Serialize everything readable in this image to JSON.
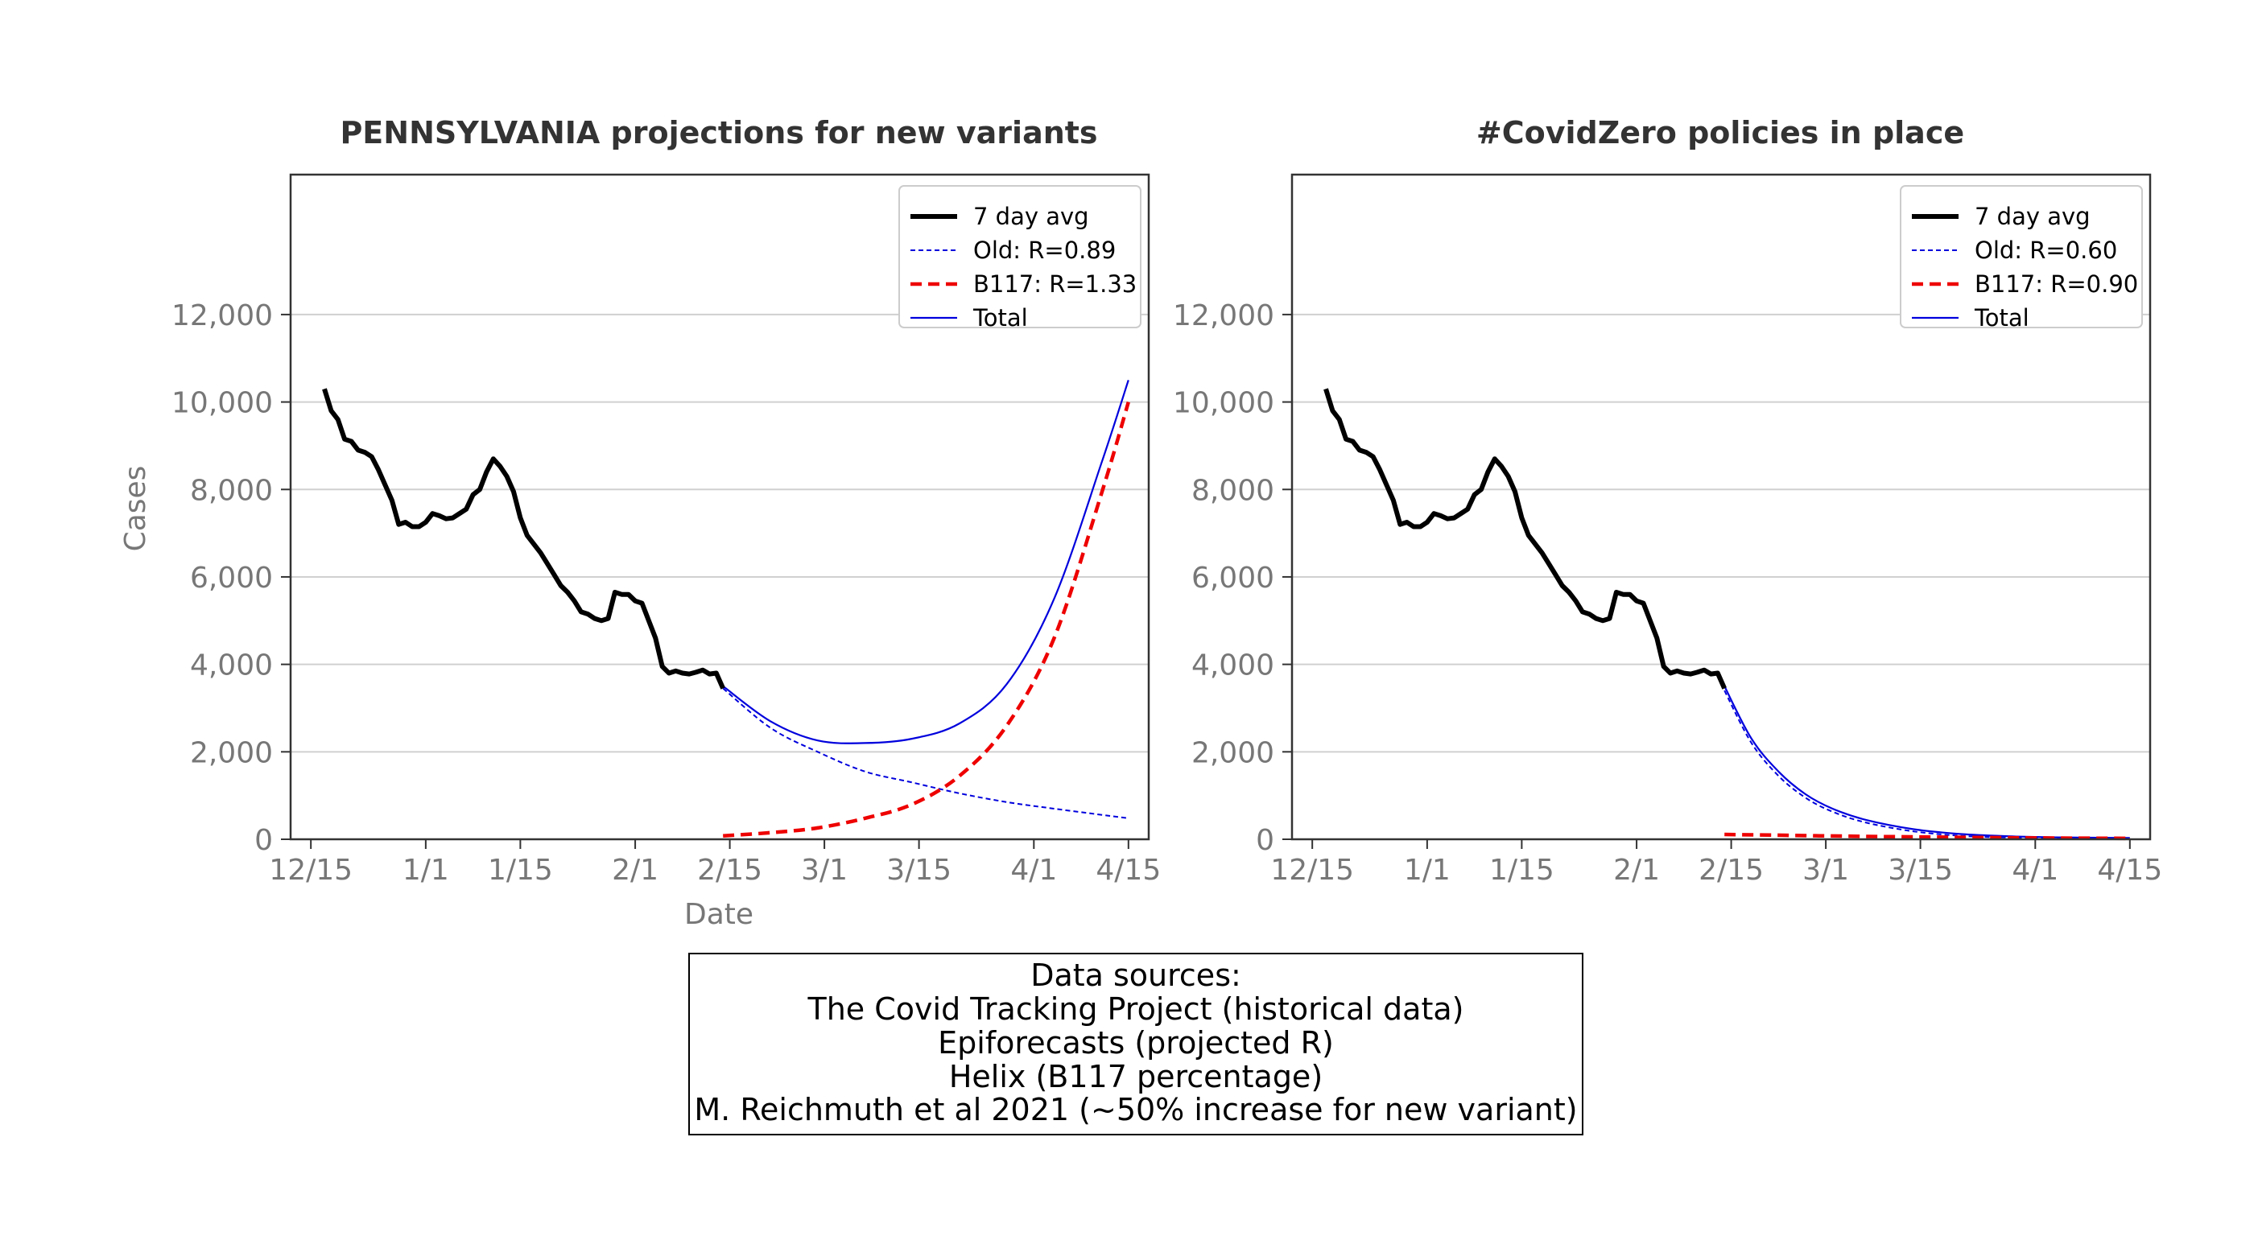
{
  "chart_data": [
    {
      "type": "line",
      "title": "PENNSYLVANIA projections for new variants",
      "xlabel": "Date",
      "ylabel": "Cases",
      "x_ticks": [
        "12/15",
        "1/1",
        "1/15",
        "2/1",
        "2/15",
        "3/1",
        "3/15",
        "4/1",
        "4/15"
      ],
      "y_ticks": [
        "0",
        "2,000",
        "4,000",
        "6,000",
        "8,000",
        "10,000",
        "12,000"
      ],
      "ylim": [
        0,
        12000
      ],
      "grid": "horizontal",
      "legend_position": "top-right",
      "colors": {
        "history": "#000000",
        "old": "#0000dd",
        "b117": "#ee0000",
        "total": "#0000dd"
      },
      "legend": [
        {
          "label": "7 day avg",
          "style": "thick-solid-black"
        },
        {
          "label": "Old: R=0.89",
          "style": "dashed-blue"
        },
        {
          "label": "B117: R=1.33",
          "style": "dashed-red"
        },
        {
          "label": "Total",
          "style": "solid-blue"
        }
      ],
      "series": [
        {
          "name": "7 day avg",
          "x": [
            "12/17",
            "12/18",
            "12/19",
            "12/20",
            "12/21",
            "12/22",
            "12/23",
            "12/24",
            "12/25",
            "12/26",
            "12/27",
            "12/28",
            "12/29",
            "12/30",
            "12/31",
            "1/1",
            "1/2",
            "1/3",
            "1/4",
            "1/5",
            "1/6",
            "1/7",
            "1/8",
            "1/9",
            "1/10",
            "1/11",
            "1/12",
            "1/13",
            "1/14",
            "1/15",
            "1/16",
            "1/17",
            "1/18",
            "1/19",
            "1/20",
            "1/21",
            "1/22",
            "1/23",
            "1/24",
            "1/25",
            "1/26",
            "1/27",
            "1/28",
            "1/29",
            "1/30",
            "1/31",
            "2/1",
            "2/2",
            "2/3",
            "2/4",
            "2/5",
            "2/6",
            "2/7",
            "2/8",
            "2/9",
            "2/10",
            "2/11",
            "2/12",
            "2/13",
            "2/14"
          ],
          "values": [
            10300,
            9800,
            9600,
            9150,
            9100,
            8900,
            8850,
            8750,
            8450,
            8100,
            7750,
            7200,
            7250,
            7150,
            7150,
            7250,
            7450,
            7400,
            7330,
            7350,
            7450,
            7550,
            7880,
            8000,
            8400,
            8700,
            8530,
            8300,
            7950,
            7350,
            6950,
            6750,
            6550,
            6300,
            6050,
            5800,
            5650,
            5450,
            5200,
            5150,
            5050,
            5000,
            5050,
            5650,
            5600,
            5600,
            5450,
            5400,
            5000,
            4600,
            3950,
            3800,
            3850,
            3800,
            3780,
            3820,
            3870,
            3780,
            3800,
            3450
          ]
        },
        {
          "name": "Old: R=0.89",
          "x": [
            "2/14",
            "2/21",
            "2/28",
            "3/7",
            "3/14",
            "3/21",
            "3/28",
            "4/4",
            "4/11",
            "4/15"
          ],
          "values": [
            3450,
            2550,
            2000,
            1550,
            1300,
            1050,
            850,
            700,
            560,
            480
          ]
        },
        {
          "name": "B117: R=1.33",
          "x": [
            "2/14",
            "2/21",
            "2/28",
            "3/7",
            "3/14",
            "3/21",
            "3/28",
            "4/4",
            "4/11",
            "4/15"
          ],
          "values": [
            80,
            150,
            260,
            480,
            800,
            1450,
            2600,
            4600,
            7900,
            10000
          ]
        },
        {
          "name": "Total",
          "x": [
            "2/14",
            "2/21",
            "2/28",
            "3/7",
            "3/14",
            "3/21",
            "3/28",
            "4/4",
            "4/11",
            "4/15"
          ],
          "values": [
            3500,
            2700,
            2260,
            2200,
            2300,
            2650,
            3550,
            5500,
            8600,
            10500
          ]
        }
      ]
    },
    {
      "type": "line",
      "title": "#CovidZero policies in place",
      "xlabel": "",
      "ylabel": "",
      "x_ticks": [
        "12/15",
        "1/1",
        "1/15",
        "2/1",
        "2/15",
        "3/1",
        "3/15",
        "4/1",
        "4/15"
      ],
      "y_ticks": [
        "0",
        "2,000",
        "4,000",
        "6,000",
        "8,000",
        "10,000",
        "12,000"
      ],
      "ylim": [
        0,
        12000
      ],
      "grid": "horizontal",
      "legend_position": "top-right",
      "colors": {
        "history": "#000000",
        "old": "#0000dd",
        "b117": "#ee0000",
        "total": "#0000dd"
      },
      "legend": [
        {
          "label": "7 day avg",
          "style": "thick-solid-black"
        },
        {
          "label": "Old: R=0.60",
          "style": "dashed-blue"
        },
        {
          "label": "B117: R=0.90",
          "style": "dashed-red"
        },
        {
          "label": "Total",
          "style": "solid-blue"
        }
      ],
      "series": [
        {
          "name": "7 day avg",
          "x": [
            "12/17",
            "12/18",
            "12/19",
            "12/20",
            "12/21",
            "12/22",
            "12/23",
            "12/24",
            "12/25",
            "12/26",
            "12/27",
            "12/28",
            "12/29",
            "12/30",
            "12/31",
            "1/1",
            "1/2",
            "1/3",
            "1/4",
            "1/5",
            "1/6",
            "1/7",
            "1/8",
            "1/9",
            "1/10",
            "1/11",
            "1/12",
            "1/13",
            "1/14",
            "1/15",
            "1/16",
            "1/17",
            "1/18",
            "1/19",
            "1/20",
            "1/21",
            "1/22",
            "1/23",
            "1/24",
            "1/25",
            "1/26",
            "1/27",
            "1/28",
            "1/29",
            "1/30",
            "1/31",
            "2/1",
            "2/2",
            "2/3",
            "2/4",
            "2/5",
            "2/6",
            "2/7",
            "2/8",
            "2/9",
            "2/10",
            "2/11",
            "2/12",
            "2/13",
            "2/14"
          ],
          "values": [
            10300,
            9800,
            9600,
            9150,
            9100,
            8900,
            8850,
            8750,
            8450,
            8100,
            7750,
            7200,
            7250,
            7150,
            7150,
            7250,
            7450,
            7400,
            7330,
            7350,
            7450,
            7550,
            7880,
            8000,
            8400,
            8700,
            8530,
            8300,
            7950,
            7350,
            6950,
            6750,
            6550,
            6300,
            6050,
            5800,
            5650,
            5450,
            5200,
            5150,
            5050,
            5000,
            5050,
            5650,
            5600,
            5600,
            5450,
            5400,
            5000,
            4600,
            3950,
            3800,
            3850,
            3800,
            3780,
            3820,
            3870,
            3780,
            3800,
            3450
          ]
        },
        {
          "name": "Old: R=0.60",
          "x": [
            "2/14",
            "2/18",
            "2/22",
            "2/26",
            "3/2",
            "3/7",
            "3/14",
            "3/21",
            "3/28",
            "4/4",
            "4/15"
          ],
          "values": [
            3400,
            2200,
            1450,
            950,
            630,
            380,
            180,
            80,
            40,
            20,
            10
          ]
        },
        {
          "name": "B117: R=0.90",
          "x": [
            "2/14",
            "2/21",
            "2/28",
            "3/7",
            "3/14",
            "3/21",
            "3/28",
            "4/4",
            "4/15"
          ],
          "values": [
            110,
            95,
            80,
            65,
            55,
            45,
            35,
            28,
            20
          ]
        },
        {
          "name": "Total",
          "x": [
            "2/14",
            "2/18",
            "2/22",
            "2/26",
            "3/2",
            "3/7",
            "3/14",
            "3/21",
            "3/28",
            "4/4",
            "4/15"
          ],
          "values": [
            3500,
            2300,
            1550,
            1030,
            700,
            440,
            230,
            120,
            70,
            45,
            30
          ]
        }
      ]
    }
  ],
  "sources": {
    "lines": [
      "Data sources:",
      "The Covid Tracking Project (historical data)",
      "Epiforecasts (projected R)",
      "Helix (B117 percentage)",
      "M. Reichmuth et al 2021 (~50% increase for new variant)"
    ]
  }
}
